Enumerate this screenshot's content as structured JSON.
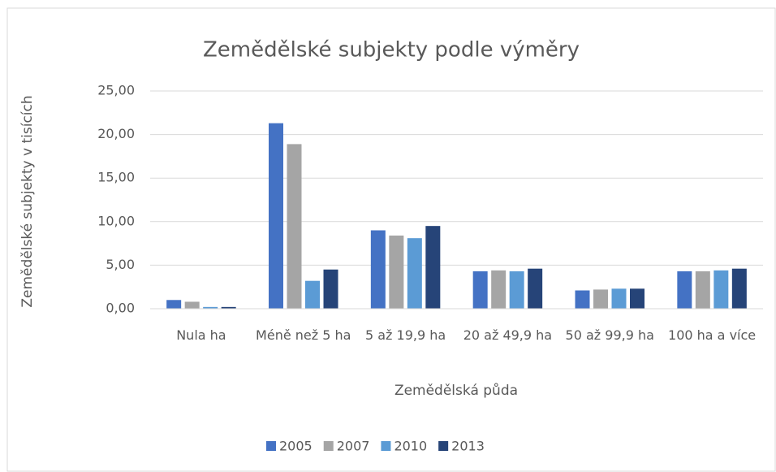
{
  "chart_data": {
    "type": "bar",
    "title": "Zemědělské subjekty podle výměry",
    "xlabel": "Zemědělská půda",
    "ylabel": "Zemědělské subjekty v tisících",
    "categories": [
      "Nula ha",
      "Méně než 5 ha",
      "5 až 19,9 ha",
      "20 až 49,9 ha",
      "50 až 99,9 ha",
      "100 ha a více"
    ],
    "series": [
      {
        "name": "2005",
        "color": "#4472c4",
        "values": [
          1.0,
          21.3,
          9.0,
          4.3,
          2.1,
          4.3
        ]
      },
      {
        "name": "2007",
        "color": "#a5a5a5",
        "values": [
          0.8,
          18.9,
          8.4,
          4.4,
          2.2,
          4.3
        ]
      },
      {
        "name": "2010",
        "color": "#5b9bd5",
        "values": [
          0.2,
          3.2,
          8.1,
          4.3,
          2.3,
          4.4
        ]
      },
      {
        "name": "2013",
        "color": "#264478",
        "values": [
          0.2,
          4.5,
          9.5,
          4.6,
          2.3,
          4.6
        ]
      }
    ],
    "ylim": [
      0,
      25
    ],
    "yticks": [
      {
        "value": 0,
        "label": "0,00"
      },
      {
        "value": 5,
        "label": "5,00"
      },
      {
        "value": 10,
        "label": "10,00"
      },
      {
        "value": 15,
        "label": "15,00"
      },
      {
        "value": 20,
        "label": "20,00"
      },
      {
        "value": 25,
        "label": "25,00"
      }
    ],
    "grid": true,
    "legend": "bottom"
  }
}
